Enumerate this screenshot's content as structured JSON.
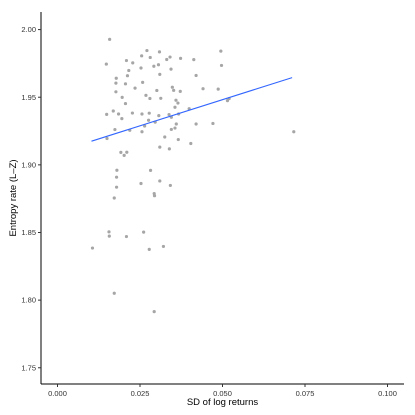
{
  "chart_data": {
    "type": "scatter",
    "title": "",
    "xlabel": "SD of log returns",
    "ylabel": "Entropy rate (L–Z)",
    "xlim": [
      -0.005,
      0.105
    ],
    "ylim": [
      1.738,
      2.013
    ],
    "x_ticks": [
      0.0,
      0.025,
      0.05,
      0.075,
      0.1
    ],
    "x_tick_labels": [
      "0.000",
      "0.025",
      "0.050",
      "0.075",
      "0.100"
    ],
    "y_ticks": [
      1.75,
      1.8,
      1.85,
      1.9,
      1.95,
      2.0
    ],
    "y_tick_labels": [
      "1.75",
      "1.80",
      "1.85",
      "1.90",
      "1.95",
      "2.00"
    ],
    "grid": false,
    "legend": "none",
    "point_color": "#A6A6A6",
    "line_color": "#3366FF",
    "points": [
      [
        0.0148,
        1.9745
      ],
      [
        0.0158,
        1.9928
      ],
      [
        0.0271,
        1.9845
      ],
      [
        0.0309,
        1.9835
      ],
      [
        0.0255,
        1.9806
      ],
      [
        0.0281,
        1.9794
      ],
      [
        0.0341,
        1.9797
      ],
      [
        0.0373,
        1.9787
      ],
      [
        0.0331,
        1.9779
      ],
      [
        0.0413,
        1.9778
      ],
      [
        0.0495,
        1.9841
      ],
      [
        0.0497,
        1.9735
      ],
      [
        0.0209,
        1.9771
      ],
      [
        0.0228,
        1.9754
      ],
      [
        0.0216,
        1.9698
      ],
      [
        0.0212,
        1.9659
      ],
      [
        0.0178,
        1.964
      ],
      [
        0.0177,
        1.9604
      ],
      [
        0.031,
        1.9669
      ],
      [
        0.0306,
        1.974
      ],
      [
        0.0253,
        1.9716
      ],
      [
        0.0292,
        1.9729
      ],
      [
        0.0344,
        1.9708
      ],
      [
        0.042,
        1.9661
      ],
      [
        0.0258,
        1.961
      ],
      [
        0.0206,
        1.9599
      ],
      [
        0.0235,
        1.9567
      ],
      [
        0.0301,
        1.955
      ],
      [
        0.0348,
        1.9574
      ],
      [
        0.0352,
        1.9551
      ],
      [
        0.0372,
        1.9543
      ],
      [
        0.0441,
        1.9563
      ],
      [
        0.0487,
        1.956
      ],
      [
        0.052,
        1.949
      ],
      [
        0.0515,
        1.9475
      ],
      [
        0.0177,
        1.954
      ],
      [
        0.0196,
        1.9499
      ],
      [
        0.0206,
        1.9453
      ],
      [
        0.0268,
        1.9514
      ],
      [
        0.028,
        1.9491
      ],
      [
        0.0313,
        1.9492
      ],
      [
        0.0359,
        1.9478
      ],
      [
        0.0365,
        1.9457
      ],
      [
        0.0356,
        1.9426
      ],
      [
        0.0399,
        1.9415
      ],
      [
        0.0169,
        1.9398
      ],
      [
        0.0185,
        1.9376
      ],
      [
        0.0149,
        1.9373
      ],
      [
        0.0227,
        1.9383
      ],
      [
        0.0256,
        1.9376
      ],
      [
        0.0278,
        1.9382
      ],
      [
        0.0307,
        1.9364
      ],
      [
        0.0338,
        1.9372
      ],
      [
        0.0367,
        1.9376
      ],
      [
        0.0345,
        1.9352
      ],
      [
        0.0195,
        1.9342
      ],
      [
        0.0276,
        1.933
      ],
      [
        0.0296,
        1.9316
      ],
      [
        0.036,
        1.9302
      ],
      [
        0.042,
        1.9302
      ],
      [
        0.0471,
        1.9306
      ],
      [
        0.0264,
        1.9287
      ],
      [
        0.0345,
        1.9262
      ],
      [
        0.0356,
        1.9272
      ],
      [
        0.0174,
        1.9261
      ],
      [
        0.0219,
        1.9256
      ],
      [
        0.0256,
        1.9245
      ],
      [
        0.0716,
        1.9245
      ],
      [
        0.0325,
        1.9206
      ],
      [
        0.015,
        1.9195
      ],
      [
        0.0366,
        1.9187
      ],
      [
        0.0404,
        1.9158
      ],
      [
        0.031,
        1.9131
      ],
      [
        0.0339,
        1.9118
      ],
      [
        0.021,
        1.9093
      ],
      [
        0.0192,
        1.9092
      ],
      [
        0.0202,
        1.907
      ],
      [
        0.018,
        1.896
      ],
      [
        0.0282,
        1.8959
      ],
      [
        0.0179,
        1.8909
      ],
      [
        0.0253,
        1.8862
      ],
      [
        0.031,
        1.8881
      ],
      [
        0.0342,
        1.8848
      ],
      [
        0.0179,
        1.8835
      ],
      [
        0.0293,
        1.8788
      ],
      [
        0.0294,
        1.8772
      ],
      [
        0.0172,
        1.8755
      ],
      [
        0.0156,
        1.8505
      ],
      [
        0.0157,
        1.8473
      ],
      [
        0.0261,
        1.8503
      ],
      [
        0.0209,
        1.847
      ],
      [
        0.0106,
        1.8385
      ],
      [
        0.0278,
        1.8375
      ],
      [
        0.0321,
        1.8397
      ],
      [
        0.0172,
        1.8051
      ],
      [
        0.0293,
        1.7915
      ]
    ],
    "trend_line": {
      "x": [
        0.0103,
        0.0711
      ],
      "y": [
        1.9175,
        1.9645
      ]
    }
  }
}
